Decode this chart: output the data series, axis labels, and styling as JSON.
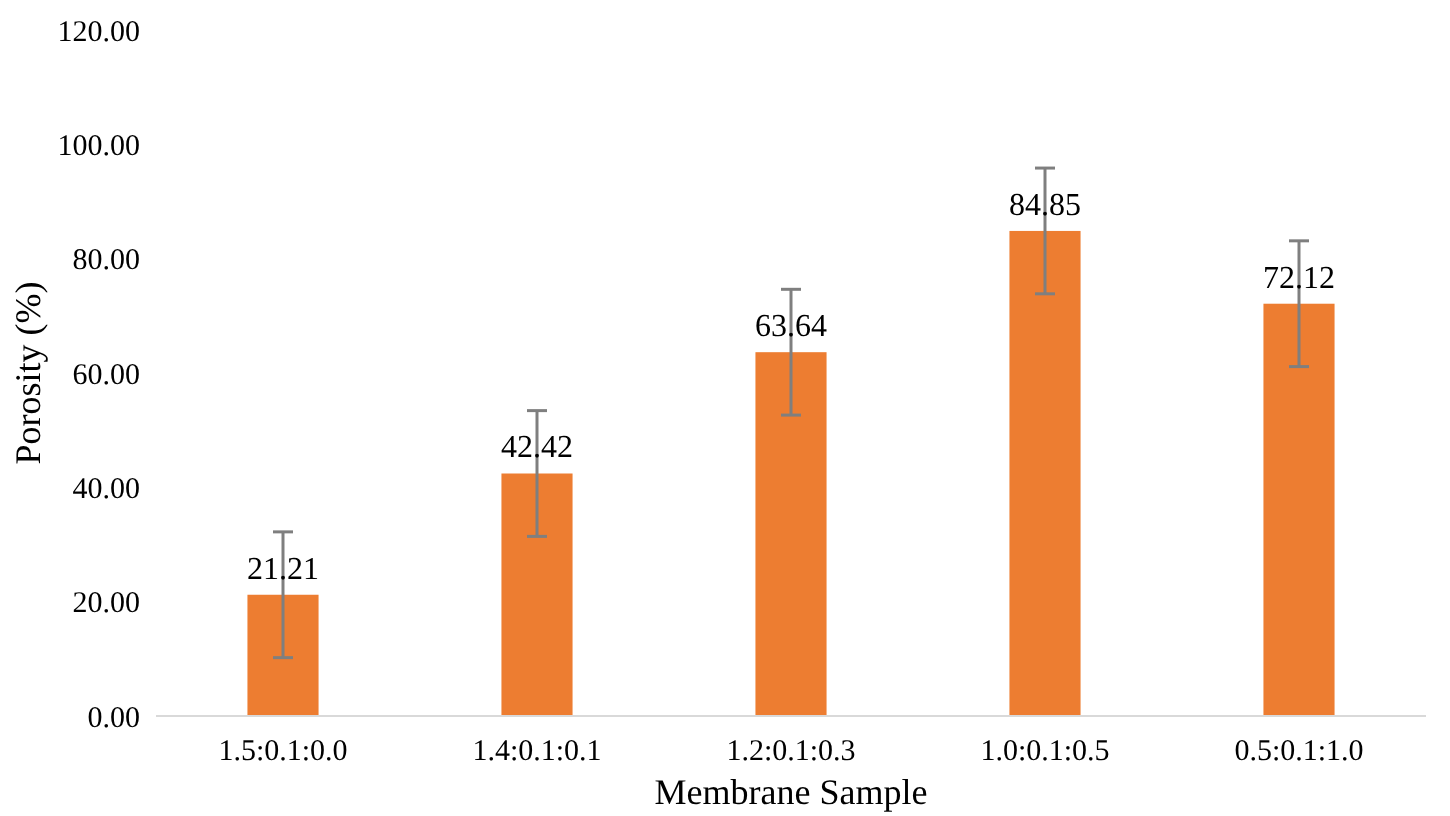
{
  "chart_data": {
    "type": "bar",
    "xlabel": "Membrane Sample",
    "ylabel": "Porosity (%)",
    "categories": [
      "1.5:0.1:0.0",
      "1.4:0.1:0.1",
      "1.2:0.1:0.3",
      "1.0:0.1:0.5",
      "0.5:0.1:1.0"
    ],
    "values": [
      21.21,
      42.42,
      63.64,
      84.85,
      72.12
    ],
    "errors": [
      11,
      11,
      11,
      11,
      11
    ],
    "color": "#ed7d31",
    "ylim": [
      0,
      120
    ],
    "yticks": [
      {
        "value": 0,
        "label": "0.00"
      },
      {
        "value": 20,
        "label": "20.00"
      },
      {
        "value": 40,
        "label": "40.00"
      },
      {
        "value": 60,
        "label": "60.00"
      },
      {
        "value": 80,
        "label": "80.00"
      },
      {
        "value": 100,
        "label": "100.00"
      },
      {
        "value": 120,
        "label": "120.00"
      }
    ],
    "data_labels": true
  }
}
